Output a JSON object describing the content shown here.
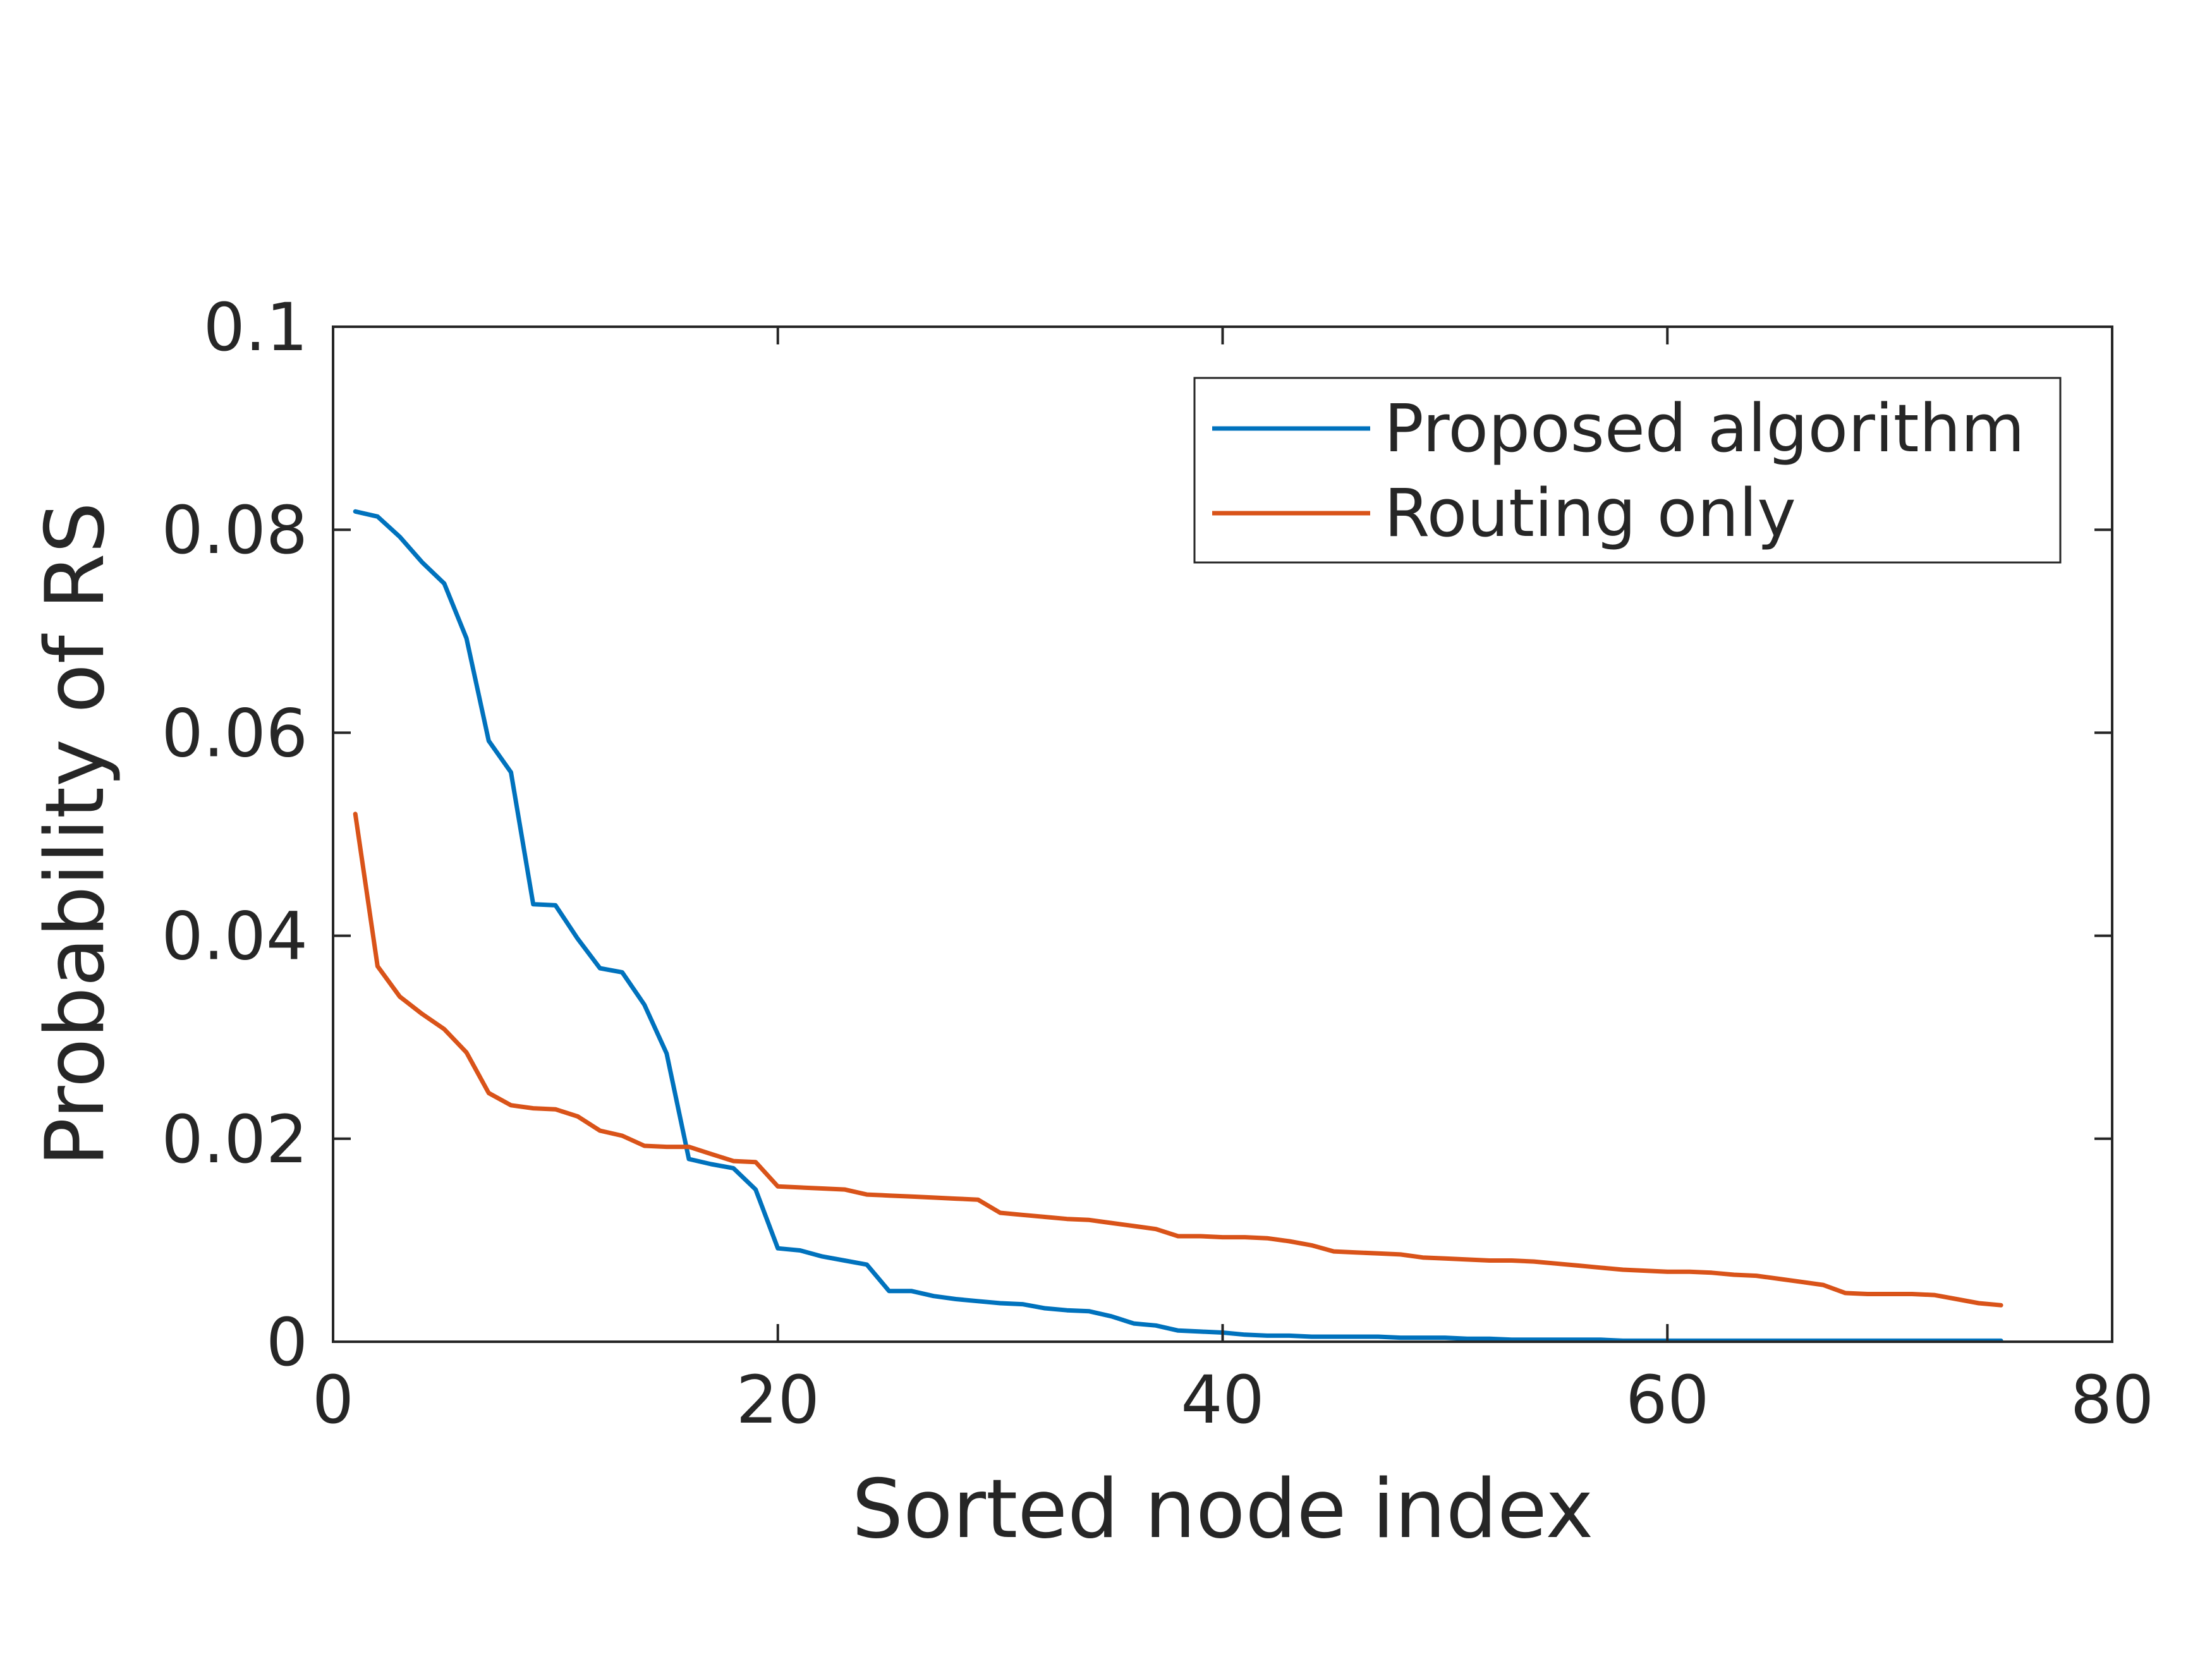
{
  "chart_data": {
    "type": "line",
    "title": "",
    "xlabel": "Sorted node index",
    "ylabel": "Probability of RS",
    "xlim": [
      0,
      80
    ],
    "ylim": [
      0,
      0.1
    ],
    "xticks": [
      0,
      20,
      40,
      60,
      80
    ],
    "yticks": [
      0,
      0.02,
      0.04,
      0.06,
      0.08,
      0.1
    ],
    "xtick_labels": [
      "0",
      "20",
      "40",
      "60",
      "80"
    ],
    "ytick_labels": [
      "0",
      "0.02",
      "0.04",
      "0.06",
      "0.08",
      "0.1"
    ],
    "grid": false,
    "legend_position": "top-right",
    "x": [
      1,
      2,
      3,
      4,
      5,
      6,
      7,
      8,
      9,
      10,
      11,
      12,
      13,
      14,
      15,
      16,
      17,
      18,
      19,
      20,
      21,
      22,
      23,
      24,
      25,
      26,
      27,
      28,
      29,
      30,
      31,
      32,
      33,
      34,
      35,
      36,
      37,
      38,
      39,
      40,
      41,
      42,
      43,
      44,
      45,
      46,
      47,
      48,
      49,
      50,
      51,
      52,
      53,
      54,
      55,
      56,
      57,
      58,
      59,
      60,
      61,
      62,
      63,
      64,
      65,
      66,
      67,
      68,
      69,
      70,
      71,
      72,
      73,
      74,
      75
    ],
    "series": [
      {
        "name": "Proposed algorithm",
        "color": "#0072BD",
        "values": [
          0.0818,
          0.0813,
          0.0793,
          0.0768,
          0.0747,
          0.0693,
          0.0592,
          0.0561,
          0.0431,
          0.043,
          0.0397,
          0.0368,
          0.0364,
          0.0332,
          0.0284,
          0.018,
          0.0175,
          0.0171,
          0.015,
          0.0092,
          0.009,
          0.0084,
          0.008,
          0.0076,
          0.005,
          0.005,
          0.0045,
          0.0042,
          0.004,
          0.0038,
          0.0037,
          0.0033,
          0.0031,
          0.003,
          0.0025,
          0.0018,
          0.0016,
          0.0011,
          0.001,
          0.0009,
          0.0007,
          0.0006,
          0.0006,
          0.0005,
          0.0005,
          0.0005,
          0.0005,
          0.0004,
          0.0004,
          0.0004,
          0.0003,
          0.0003,
          0.0002,
          0.0002,
          0.0002,
          0.0002,
          0.0002,
          0.0001,
          0.0001,
          0.0001,
          0.0001,
          0.0001,
          0.0001,
          0.0001,
          0.0001,
          0.0001,
          0.0001,
          0.0001,
          0.0001,
          0.0001,
          0.0001,
          0.0001,
          0.0001,
          0.0001,
          0.0001
        ]
      },
      {
        "name": "Routing only",
        "color": "#D95319",
        "values": [
          0.052,
          0.037,
          0.034,
          0.0323,
          0.0308,
          0.0285,
          0.0245,
          0.0233,
          0.023,
          0.0229,
          0.0222,
          0.0208,
          0.0203,
          0.0193,
          0.0192,
          0.0192,
          0.0185,
          0.0178,
          0.0177,
          0.0153,
          0.0152,
          0.0151,
          0.015,
          0.0145,
          0.0144,
          0.0143,
          0.0142,
          0.0141,
          0.014,
          0.0127,
          0.0125,
          0.0123,
          0.0121,
          0.012,
          0.0117,
          0.0114,
          0.0111,
          0.0104,
          0.0104,
          0.0103,
          0.0103,
          0.0102,
          0.0099,
          0.0095,
          0.0089,
          0.0088,
          0.0087,
          0.0086,
          0.0083,
          0.0082,
          0.0081,
          0.008,
          0.008,
          0.0079,
          0.0077,
          0.0075,
          0.0073,
          0.0071,
          0.007,
          0.0069,
          0.0069,
          0.0068,
          0.0066,
          0.0065,
          0.0062,
          0.0059,
          0.0056,
          0.0048,
          0.0047,
          0.0047,
          0.0047,
          0.0046,
          0.0042,
          0.0038,
          0.0036
        ]
      }
    ]
  }
}
